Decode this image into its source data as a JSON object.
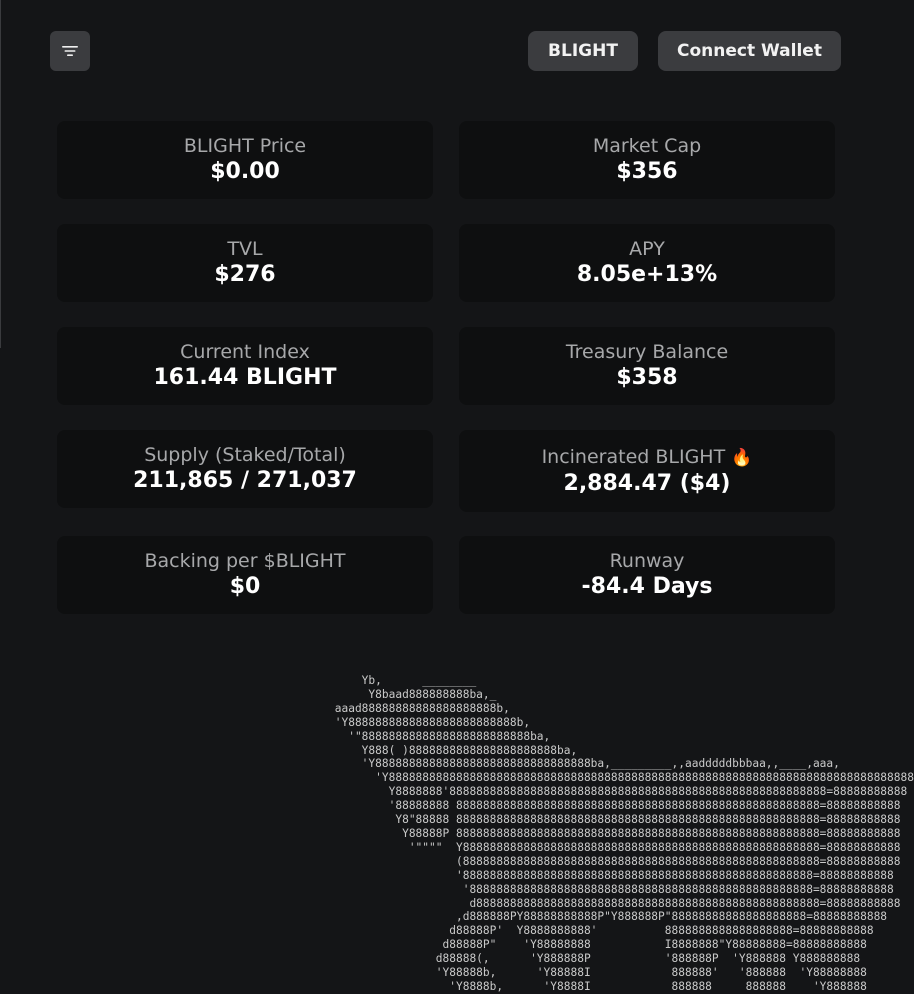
{
  "header": {
    "token_label": "BLIGHT",
    "wallet_label": "Connect Wallet",
    "menu_icon": "hamburger-filter-icon"
  },
  "stats": {
    "price": {
      "label": "BLIGHT Price",
      "value": "$0.00"
    },
    "market_cap": {
      "label": "Market Cap",
      "value": "$356"
    },
    "tvl": {
      "label": "TVL",
      "value": "$276"
    },
    "apy": {
      "label": "APY",
      "value": "8.05e+13%"
    },
    "index": {
      "label": "Current Index",
      "value": "161.44 BLIGHT"
    },
    "treasury": {
      "label": "Treasury Balance",
      "value": "$358"
    },
    "supply": {
      "label": "Supply (Staked/Total)",
      "value": "211,865 / 271,037"
    },
    "incinerated": {
      "label": "Incinerated BLIGHT",
      "icon": "🔥",
      "value": "2,884.47 ($4)"
    },
    "backing": {
      "label": "Backing per $BLIGHT",
      "value": "$0"
    },
    "runway": {
      "label": "Runway",
      "value": "-84.4 Days"
    }
  },
  "art": {
    "ascii": "     Yb,      ________\n      Y8baad888888888ba,_\n aaad88888888888888888888b,\n 'Y8888888888888888888888888b,\n   '\"8888888888888888888888888ba,\n     Y888( )8888888888888888888888ba,\n     'Y88888888888888888888888888888888ba,_________,,aadddddbbbaa,,____,aaa,\n       'Y888888888888888888888888888888888888888888888888888888888888888888888888888888\n         Y8888888'88888888888888888888888888888888888888888888888888888888=88888888888\n         '88888888 888888888888888888888888888888888888888888888888888888=88888888888\n          Y8\"88888 888888888888888888888888888888888888888888888888888888=88888888888\n           Y88888P 888888888888888888888888888888888888888888888888888888=88888888888\n            '\"\"\"\"  Y88888888888888888888888888888888888888888888888888888=88888888888\n                   (88888888888888888888888888888888888888888888888888888=88888888888\n                   '8888888888888888888888888888888888888888888888888888=88888888888\n                    '888888888888888888888888888888888888888888888888888=88888888888\n                     d888888888888888888888888888888888888888888888888888=88888888888\n                   ,d888888PY88888888888P\"Y888888P\"88888888888888888888=88888888888\n                  d88888P'  Y8888888888'          8888888888888888888=88888888888\n                 d88888P\"    'Y88888888           I8888888\"Y88888888=88888888888\n                d88888(,      'Y888888P           '888888P  'Y888888 Y888888888\n                'Y88888b,      'Y88888I            888888'   '888888  'Y88888888\n                  'Y8888b,      'Y8888I            888888     888888    'Y888888"
  }
}
